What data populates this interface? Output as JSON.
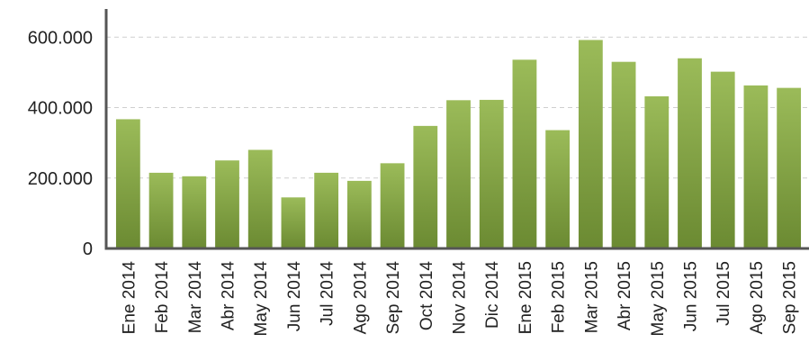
{
  "chart_data": {
    "type": "bar",
    "categories": [
      "Ene 2014",
      "Feb 2014",
      "Mar 2014",
      "Abr 2014",
      "May 2014",
      "Jun 2014",
      "Jul 2014",
      "Ago 2014",
      "Sep 2014",
      "Oct 2014",
      "Nov 2014",
      "Dic 2014",
      "Ene 2015",
      "Feb 2015",
      "Mar 2015",
      "Abr 2015",
      "May 2015",
      "Jun 2015",
      "Jul 2015",
      "Ago 2015",
      "Sep 2015"
    ],
    "values": [
      367000,
      215000,
      205000,
      250000,
      280000,
      145000,
      215000,
      192000,
      242000,
      348000,
      421000,
      422000,
      536000,
      336000,
      592000,
      530000,
      432000,
      540000,
      502000,
      463000,
      456000
    ],
    "y_ticks": [
      "0",
      "200.000",
      "400.000",
      "600.000"
    ],
    "y_tick_values": [
      0,
      200000,
      400000,
      600000
    ],
    "ylim": [
      0,
      680000
    ],
    "grid": true,
    "colors": {
      "bar_top": "#9bbb59",
      "bar_bottom": "#6b8a32",
      "axis": "#555555",
      "grid": "#cfcfcf"
    }
  }
}
